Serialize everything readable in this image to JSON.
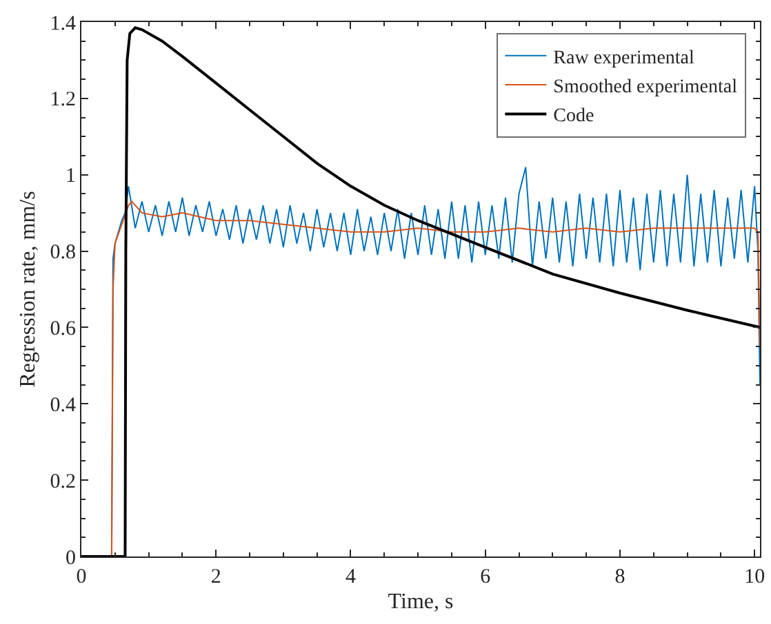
{
  "chart_data": {
    "type": "line",
    "xlabel": "Time, s",
    "ylabel": "Regression rate, mm/s",
    "xlim": [
      0,
      10.08
    ],
    "ylim": [
      0,
      1.4
    ],
    "xticks": [
      0,
      2,
      4,
      6,
      8,
      10
    ],
    "yticks": [
      0,
      0.2,
      0.4,
      0.6,
      0.8,
      1,
      1.2,
      1.4
    ],
    "legend": "top right",
    "marker": "none",
    "line_style": "solid",
    "series": [
      {
        "name": "Raw experimental",
        "color": "#0072bd",
        "x": [
          0,
          0.45,
          0.47,
          0.5,
          0.55,
          0.6,
          0.65,
          0.7,
          0.8,
          0.9,
          1.0,
          1.1,
          1.2,
          1.3,
          1.4,
          1.5,
          1.6,
          1.7,
          1.8,
          1.9,
          2.0,
          2.1,
          2.2,
          2.3,
          2.4,
          2.5,
          2.6,
          2.7,
          2.8,
          2.9,
          3.0,
          3.1,
          3.2,
          3.3,
          3.4,
          3.5,
          3.6,
          3.7,
          3.8,
          3.9,
          4.0,
          4.1,
          4.2,
          4.3,
          4.4,
          4.5,
          4.6,
          4.7,
          4.8,
          4.9,
          5.0,
          5.1,
          5.2,
          5.3,
          5.4,
          5.5,
          5.6,
          5.7,
          5.8,
          5.9,
          6.0,
          6.1,
          6.2,
          6.3,
          6.4,
          6.5,
          6.6,
          6.7,
          6.8,
          6.9,
          7.0,
          7.1,
          7.2,
          7.3,
          7.4,
          7.5,
          7.6,
          7.7,
          7.8,
          7.9,
          8.0,
          8.1,
          8.2,
          8.3,
          8.4,
          8.5,
          8.6,
          8.7,
          8.8,
          8.9,
          9.0,
          9.1,
          9.2,
          9.3,
          9.4,
          9.5,
          9.6,
          9.7,
          9.8,
          9.9,
          10.0,
          10.05,
          10.08
        ],
        "values": [
          0,
          0,
          0.78,
          0.82,
          0.85,
          0.88,
          0.9,
          0.97,
          0.86,
          0.93,
          0.85,
          0.92,
          0.84,
          0.93,
          0.85,
          0.94,
          0.84,
          0.92,
          0.85,
          0.93,
          0.84,
          0.91,
          0.83,
          0.92,
          0.82,
          0.91,
          0.83,
          0.92,
          0.82,
          0.91,
          0.81,
          0.92,
          0.82,
          0.9,
          0.8,
          0.91,
          0.81,
          0.9,
          0.8,
          0.9,
          0.79,
          0.91,
          0.8,
          0.89,
          0.79,
          0.9,
          0.8,
          0.91,
          0.78,
          0.9,
          0.79,
          0.92,
          0.79,
          0.91,
          0.78,
          0.93,
          0.78,
          0.92,
          0.77,
          0.93,
          0.79,
          0.92,
          0.78,
          0.94,
          0.77,
          0.95,
          1.02,
          0.76,
          0.93,
          0.78,
          0.94,
          0.77,
          0.93,
          0.76,
          0.95,
          0.78,
          0.94,
          0.77,
          0.95,
          0.76,
          0.96,
          0.77,
          0.94,
          0.75,
          0.95,
          0.77,
          0.96,
          0.76,
          0.95,
          0.77,
          1.0,
          0.76,
          0.95,
          0.77,
          0.96,
          0.76,
          0.94,
          0.78,
          0.96,
          0.77,
          0.97,
          0.8,
          0.45
        ]
      },
      {
        "name": "Smoothed experimental",
        "color": "#d95319",
        "x": [
          0,
          0.45,
          0.47,
          0.5,
          0.6,
          0.7,
          0.75,
          0.9,
          1.2,
          1.5,
          2,
          2.5,
          3,
          3.5,
          4,
          4.5,
          5,
          5.5,
          6,
          6.5,
          7,
          7.5,
          8,
          8.5,
          9,
          9.5,
          10,
          10.05,
          10.08
        ],
        "values": [
          0,
          0,
          0.7,
          0.82,
          0.87,
          0.92,
          0.93,
          0.9,
          0.89,
          0.9,
          0.88,
          0.88,
          0.87,
          0.86,
          0.85,
          0.85,
          0.86,
          0.85,
          0.85,
          0.86,
          0.85,
          0.86,
          0.85,
          0.86,
          0.86,
          0.86,
          0.86,
          0.85,
          0.55
        ]
      },
      {
        "name": "Code",
        "color": "#000000",
        "x": [
          0,
          0.65,
          0.66,
          0.68,
          0.72,
          0.8,
          0.9,
          1.2,
          1.5,
          2,
          2.5,
          3,
          3.5,
          4,
          4.5,
          5,
          6,
          7,
          8,
          9,
          10.08
        ],
        "values": [
          0,
          0,
          0.8,
          1.3,
          1.37,
          1.385,
          1.38,
          1.35,
          1.31,
          1.24,
          1.17,
          1.1,
          1.03,
          0.97,
          0.92,
          0.88,
          0.81,
          0.74,
          0.69,
          0.645,
          0.6
        ]
      }
    ]
  }
}
